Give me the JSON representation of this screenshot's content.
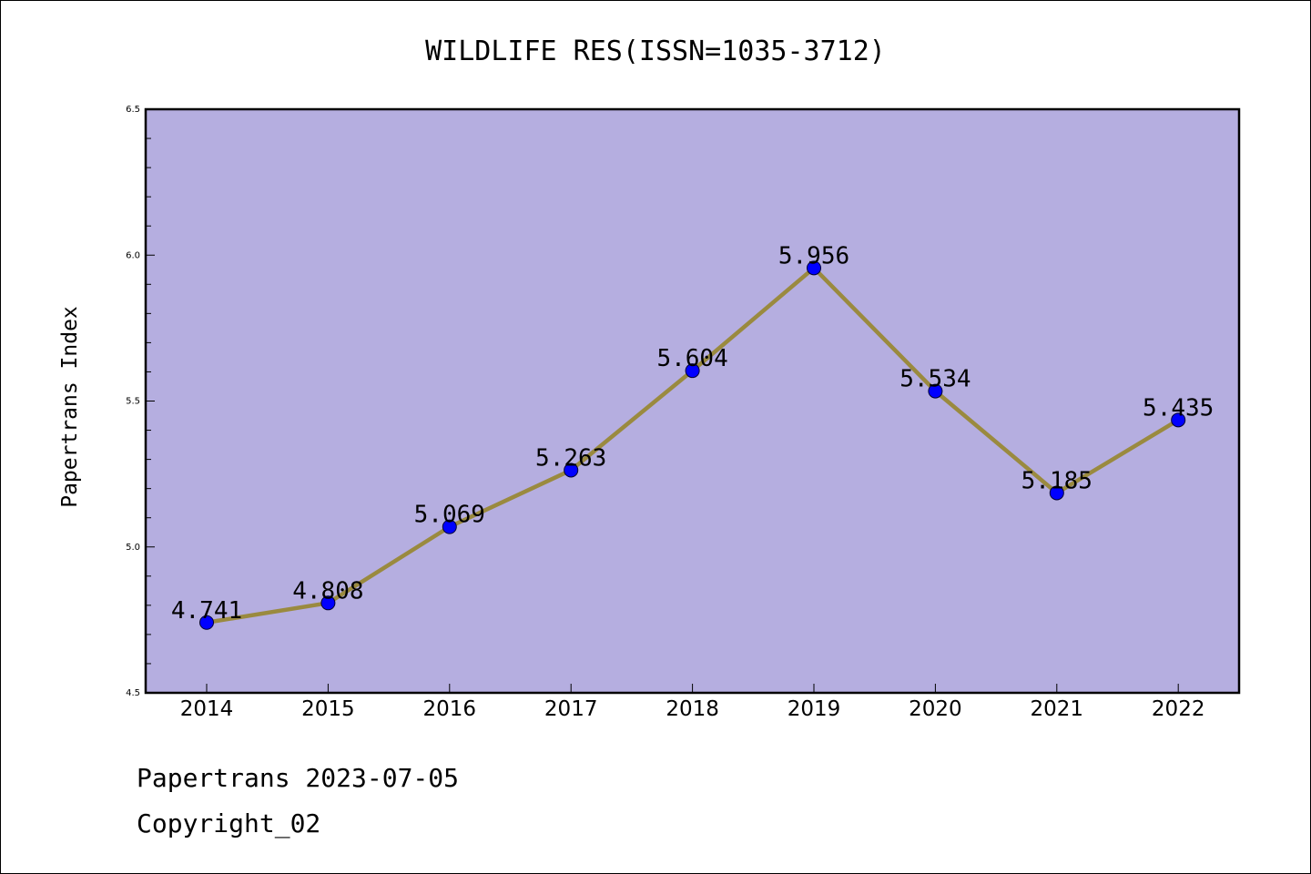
{
  "chart_data": {
    "type": "line",
    "title": "WILDLIFE RES(ISSN=1035-3712)",
    "xlabel": "",
    "ylabel": "Papertrans Index",
    "x": [
      "2014",
      "2015",
      "2016",
      "2017",
      "2018",
      "2019",
      "2020",
      "2021",
      "2022"
    ],
    "values": [
      4.741,
      4.808,
      5.069,
      5.263,
      5.604,
      5.956,
      5.534,
      5.185,
      5.435
    ],
    "data_labels": [
      "4.741",
      "4.808",
      "5.069",
      "5.263",
      "5.604",
      "5.956",
      "5.534",
      "5.185",
      "5.435"
    ],
    "ylim": [
      4.5,
      6.5
    ],
    "yticks": [
      "4.5",
      "5.0",
      "5.5",
      "6.0",
      "6.5"
    ],
    "grid": false,
    "colors": {
      "plot_background": "#b5aee0",
      "line": "#9a8a3f",
      "marker": "#0000ff"
    }
  },
  "footer": {
    "line1": "Papertrans 2023-07-05",
    "line2": "Copyright_02"
  }
}
